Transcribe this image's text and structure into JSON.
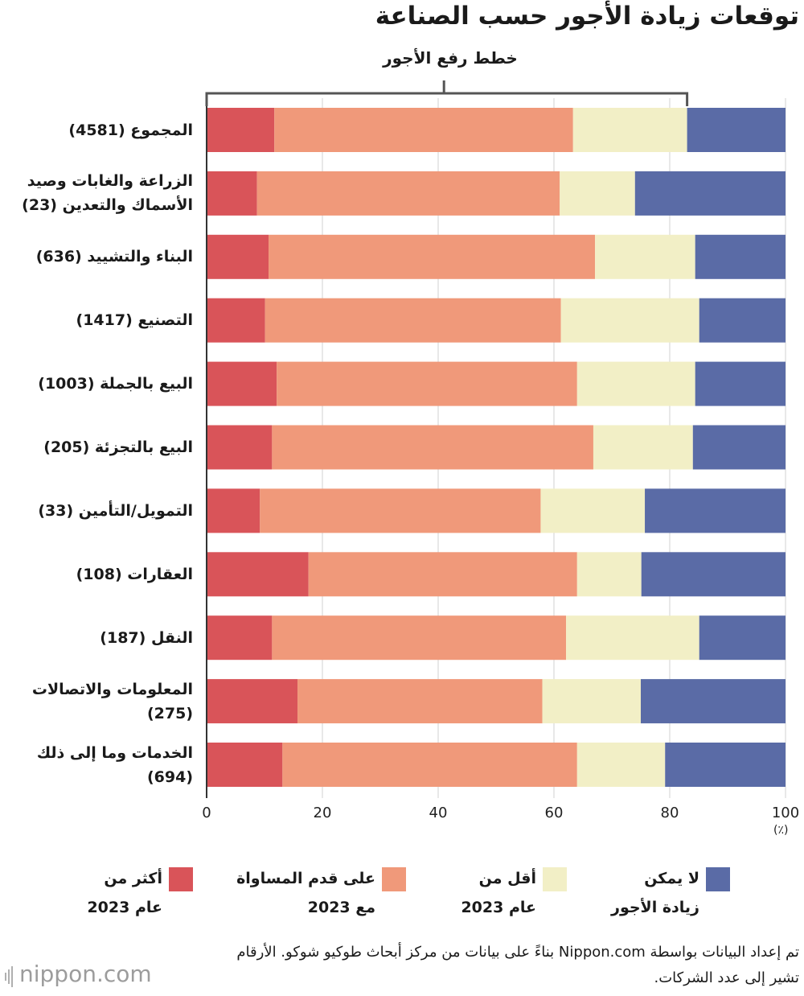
{
  "chart_data": {
    "type": "bar",
    "orientation": "horizontal",
    "stacked": true,
    "title": "توقعات زيادة الأجور حسب الصناعة",
    "bracket_label": "خطط رفع الأجور",
    "unit_label": "(٪)",
    "xlim": [
      0,
      100
    ],
    "x_ticks": [
      0,
      20,
      40,
      60,
      80,
      100
    ],
    "grid": true,
    "categories": [
      "المجموع (4581)",
      "الزراعة والغابات وصيد\nالأسماك والتعدين (23)",
      "البناء والتشييد (636)",
      "التصنيع (1417)",
      "البيع بالجملة (1003)",
      "البيع بالتجزئة (205)",
      "التمويل/التأمين (33)",
      "العقارات (108)",
      "النقل (187)",
      "المعلومات والاتصالات\n(275)",
      "الخدمات وما إلى ذلك\n(694)"
    ],
    "series": [
      {
        "name": "أكثر من\nعام 2023",
        "color": "#d95459",
        "values": [
          11.7,
          8.7,
          10.7,
          10.1,
          12.1,
          11.3,
          9.2,
          17.6,
          11.3,
          15.7,
          13.1
        ]
      },
      {
        "name": "على قدم المساواة\nمع 2023",
        "color": "#f0997a",
        "values": [
          51.6,
          52.3,
          56.4,
          51.1,
          51.9,
          55.5,
          48.5,
          46.4,
          50.8,
          42.3,
          50.9
        ]
      },
      {
        "name": "أقل من\nعام 2023",
        "color": "#f2efc6",
        "values": [
          19.7,
          13.0,
          17.3,
          23.9,
          20.4,
          17.2,
          18.0,
          11.1,
          23.0,
          17.0,
          15.2
        ]
      },
      {
        "name": "لا يمكن\nزيادة الأجور",
        "color": "#5a6ba6",
        "values": [
          17.0,
          26.0,
          15.6,
          14.9,
          15.6,
          16.0,
          24.3,
          24.9,
          14.9,
          25.0,
          20.8
        ]
      }
    ]
  },
  "source_note": "تم إعداد البيانات بواسطة Nippon.com بناءً على بيانات من مركز أبحاث طوكيو شوكو. الأرقام تشير إلى عدد الشركات.",
  "logo": {
    "name": "nippon",
    "suffix": ".com"
  }
}
